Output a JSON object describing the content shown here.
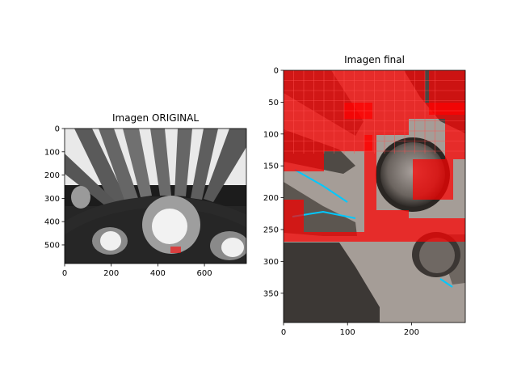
{
  "chart_data": [
    {
      "type": "image",
      "title": "Imagen ORIGINAL",
      "xlim": [
        0,
        780
      ],
      "ylim": [
        580,
        0
      ],
      "xticks": [
        0,
        200,
        400,
        600
      ],
      "yticks": [
        0,
        100,
        200,
        300,
        400,
        500
      ],
      "image_shape": {
        "width": 780,
        "height": 580
      },
      "colormap": "grayscale",
      "annotations": [
        {
          "kind": "red-box",
          "x_range": [
            455,
            505
          ],
          "y_range": [
            505,
            540
          ]
        }
      ]
    },
    {
      "type": "image",
      "title": "Imagen final",
      "xlim": [
        0,
        284
      ],
      "ylim": [
        396,
        0
      ],
      "xticks": [
        0,
        100,
        200
      ],
      "yticks": [
        0,
        50,
        100,
        150,
        200,
        250,
        300,
        350
      ],
      "image_shape": {
        "width": 284,
        "height": 396
      },
      "colormap": "gray with red overlay",
      "overlay_color": "#ff0000"
    }
  ]
}
